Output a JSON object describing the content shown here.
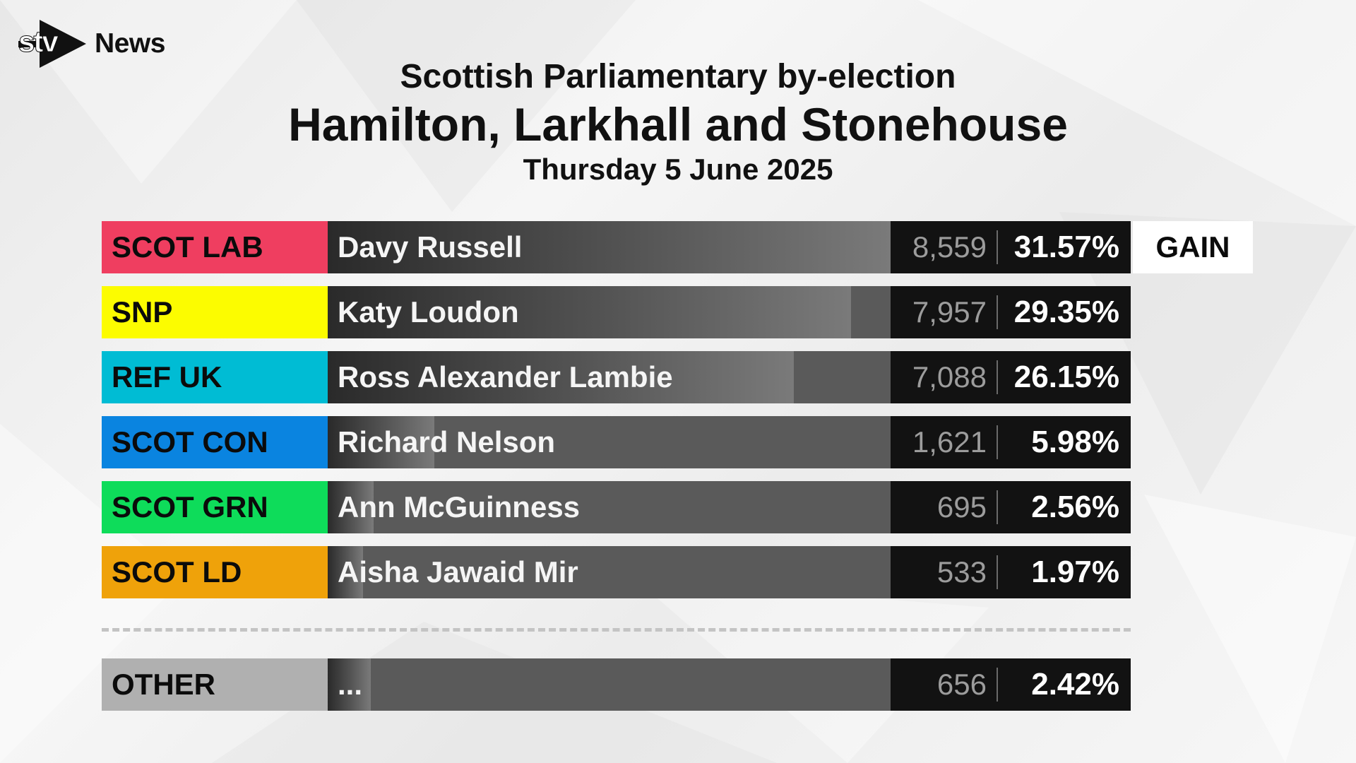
{
  "brand": {
    "logo_text": "stv",
    "news_label": "News"
  },
  "header": {
    "supertitle": "Scottish Parliamentary by-election",
    "title": "Hamilton, Larkhall and Stonehouse",
    "date": "Thursday 5 June 2025"
  },
  "chart_data": {
    "type": "bar",
    "orientation": "horizontal",
    "categories": [
      "SCOT LAB",
      "SNP",
      "REF UK",
      "SCOT CON",
      "SCOT GRN",
      "SCOT LD",
      "OTHER"
    ],
    "candidates": [
      "Davy Russell",
      "Katy Loudon",
      "Ross Alexander Lambie",
      "Richard Nelson",
      "Ann McGuinness",
      "Aisha Jawaid Mir",
      "..."
    ],
    "votes": [
      8559,
      7957,
      7088,
      1621,
      695,
      533,
      656
    ],
    "votes_labels": [
      "8,559",
      "7,957",
      "7,088",
      "1,621",
      "695",
      "533",
      "656"
    ],
    "percent": [
      31.57,
      29.35,
      26.15,
      5.98,
      2.56,
      1.97,
      2.42
    ],
    "percent_labels": [
      "31.57%",
      "29.35%",
      "26.15%",
      "5.98%",
      "2.56%",
      "1.97%",
      "2.42%"
    ],
    "party_colors": [
      "#ef3e60",
      "#fcfc00",
      "#00bcd4",
      "#0a84e0",
      "#0edc5a",
      "#efa20a",
      "#b0b0b0"
    ],
    "result_badge": {
      "row": 0,
      "text": "GAIN"
    },
    "xlim": [
      0,
      100
    ],
    "legend": "none",
    "grid": false
  }
}
